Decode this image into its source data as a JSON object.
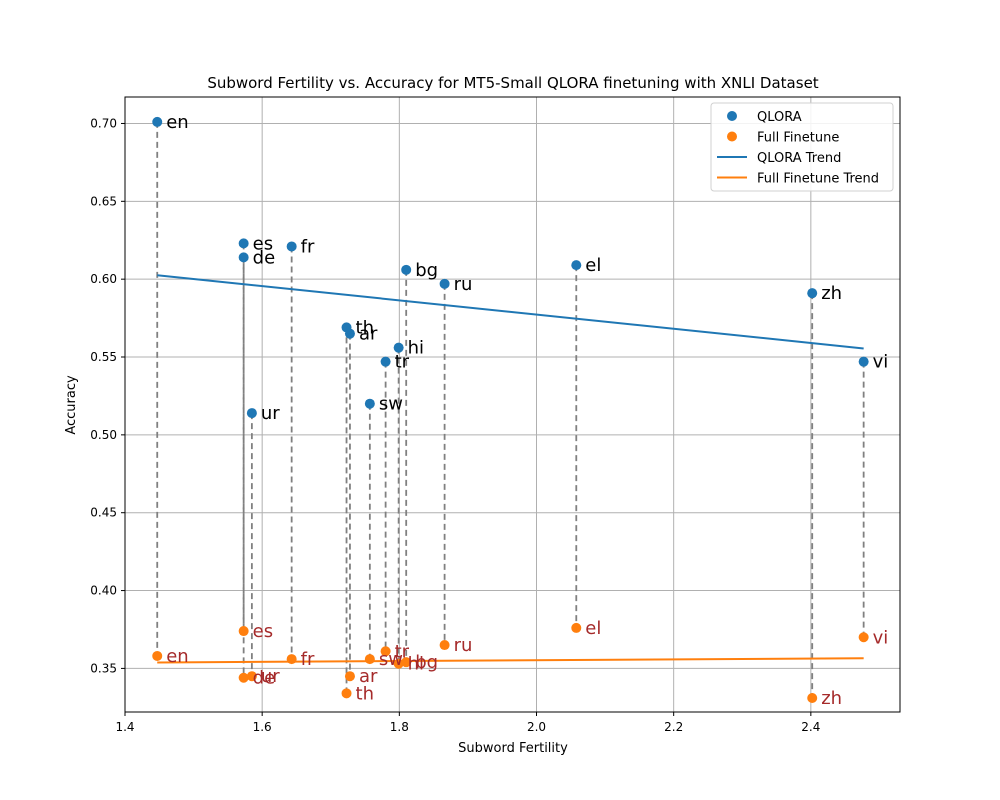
{
  "chart_data": {
    "type": "scatter",
    "title": "Subword Fertility vs. Accuracy for MT5-Small QLORA finetuning with XNLI Dataset",
    "xlabel": "Subword Fertility",
    "ylabel": "Accuracy",
    "xlim": [
      1.4,
      2.53
    ],
    "ylim": [
      0.322,
      0.717
    ],
    "xticks": [
      "1.4",
      "1.6",
      "1.8",
      "2.0",
      "2.2",
      "2.4"
    ],
    "yticks": [
      "0.35",
      "0.40",
      "0.45",
      "0.50",
      "0.55",
      "0.60",
      "0.65",
      "0.70"
    ],
    "grid": true,
    "legend_position": "upper right",
    "series": [
      {
        "name": "QLORA",
        "color": "#1f77b4",
        "points": [
          {
            "label": "en",
            "x": 1.447,
            "y": 0.701
          },
          {
            "label": "es",
            "x": 1.573,
            "y": 0.623
          },
          {
            "label": "de",
            "x": 1.573,
            "y": 0.614
          },
          {
            "label": "ur",
            "x": 1.585,
            "y": 0.514
          },
          {
            "label": "fr",
            "x": 1.643,
            "y": 0.621
          },
          {
            "label": "th",
            "x": 1.723,
            "y": 0.569
          },
          {
            "label": "ar",
            "x": 1.728,
            "y": 0.565
          },
          {
            "label": "sw",
            "x": 1.757,
            "y": 0.52
          },
          {
            "label": "tr",
            "x": 1.78,
            "y": 0.547
          },
          {
            "label": "hi",
            "x": 1.799,
            "y": 0.556
          },
          {
            "label": "bg",
            "x": 1.81,
            "y": 0.606
          },
          {
            "label": "ru",
            "x": 1.866,
            "y": 0.597
          },
          {
            "label": "el",
            "x": 2.058,
            "y": 0.609
          },
          {
            "label": "zh",
            "x": 2.402,
            "y": 0.591
          },
          {
            "label": "vi",
            "x": 2.477,
            "y": 0.547
          }
        ]
      },
      {
        "name": "Full Finetune",
        "color": "#ff7f0e",
        "points": [
          {
            "label": "en",
            "x": 1.447,
            "y": 0.358
          },
          {
            "label": "es",
            "x": 1.573,
            "y": 0.374
          },
          {
            "label": "de",
            "x": 1.573,
            "y": 0.344
          },
          {
            "label": "ur",
            "x": 1.585,
            "y": 0.345
          },
          {
            "label": "fr",
            "x": 1.643,
            "y": 0.356
          },
          {
            "label": "th",
            "x": 1.723,
            "y": 0.334
          },
          {
            "label": "ar",
            "x": 1.728,
            "y": 0.345
          },
          {
            "label": "sw",
            "x": 1.757,
            "y": 0.356
          },
          {
            "label": "tr",
            "x": 1.78,
            "y": 0.361
          },
          {
            "label": "hi",
            "x": 1.799,
            "y": 0.353
          },
          {
            "label": "bg",
            "x": 1.81,
            "y": 0.354
          },
          {
            "label": "ru",
            "x": 1.866,
            "y": 0.365
          },
          {
            "label": "el",
            "x": 2.058,
            "y": 0.376
          },
          {
            "label": "zh",
            "x": 2.402,
            "y": 0.331
          },
          {
            "label": "vi",
            "x": 2.477,
            "y": 0.37
          }
        ]
      }
    ],
    "trend_lines": [
      {
        "name": "QLORA Trend",
        "color": "#1f77b4",
        "x": [
          1.447,
          2.477
        ],
        "y": [
          0.6025,
          0.5555
        ]
      },
      {
        "name": "Full Finetune Trend",
        "color": "#ff7f0e",
        "x": [
          1.447,
          2.477
        ],
        "y": [
          0.3538,
          0.3565
        ]
      }
    ],
    "connectors": {
      "color": "#808080",
      "style": "dashed"
    },
    "label_color_full_finetune": "#a52a2a"
  }
}
